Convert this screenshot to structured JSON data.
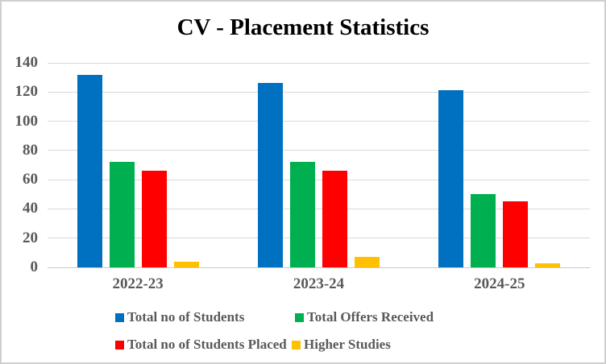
{
  "window": {
    "background_color": "#ffffff",
    "border_color": "#cfcfcf"
  },
  "chart_data": {
    "type": "bar",
    "title": "CV - Placement Statistics",
    "categories": [
      "2022-23",
      "2023-24",
      "2024-25"
    ],
    "series": [
      {
        "name": "Total no of Students",
        "color": "#0070C0",
        "values": [
          132,
          126,
          121
        ]
      },
      {
        "name": "Total Offers Received",
        "color": "#00B050",
        "values": [
          72,
          72,
          50
        ]
      },
      {
        "name": "Total no of Students Placed",
        "color": "#FF0000",
        "values": [
          66,
          66,
          45
        ]
      },
      {
        "name": "Higher Studies",
        "color": "#FFC000",
        "values": [
          4,
          7,
          3
        ]
      }
    ],
    "xlabel": "",
    "ylabel": "",
    "ylim": [
      0,
      140
    ],
    "y_tick_step": 20,
    "y_tick_labels_top_to_bottom": [
      "140",
      "120",
      "100",
      "80",
      "60",
      "40",
      "20",
      "0"
    ],
    "grid": true,
    "gridline_color": "#d9d9d9",
    "axis_text_color": "#595959",
    "title_color": "#000000",
    "legend_position": "bottom",
    "legend_rows": [
      [
        "Total no of Students",
        "Total Offers Received"
      ],
      [
        "Total no of Students Placed",
        "Higher Studies"
      ]
    ]
  }
}
